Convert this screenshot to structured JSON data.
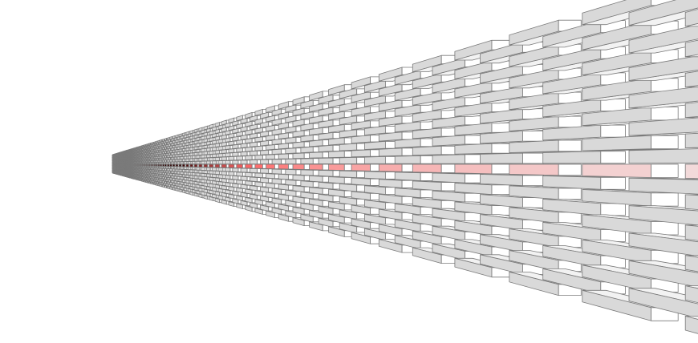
{
  "scene": {
    "subject": "brick-wall-perspective",
    "colors": {
      "background": "#ffffff",
      "brick_face": "#d9d9d9",
      "brick_top": "#f2f2f2",
      "brick_edge": "#7a7a7a",
      "highlight_near": "#f2dada",
      "highlight_mid": "#ff6a6a",
      "highlight_far": "#300000"
    }
  }
}
